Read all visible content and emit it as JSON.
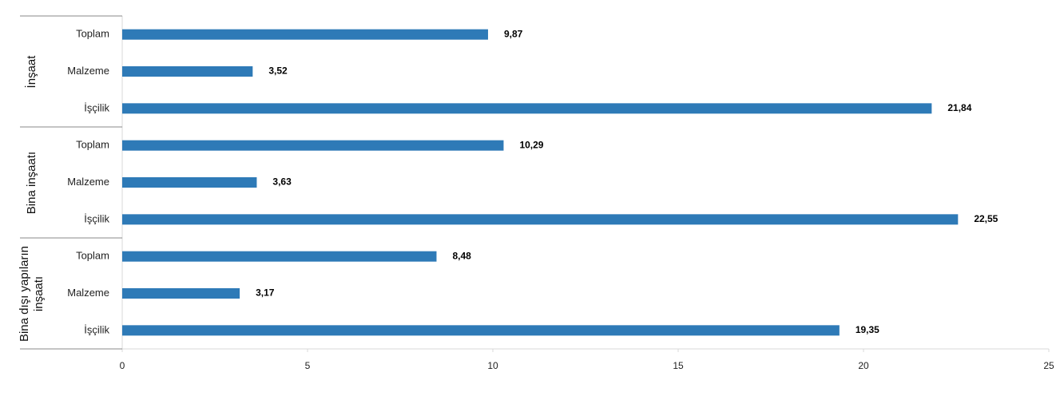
{
  "chart_data": {
    "type": "bar",
    "orientation": "horizontal",
    "color": "#2e7ab7",
    "groups": [
      {
        "name": "İnşaat",
        "categories": [
          "Toplam",
          "Malzeme",
          "İşçilik"
        ],
        "values": [
          9.87,
          3.52,
          21.84
        ],
        "value_labels": [
          "9,87",
          "3,52",
          "21,84"
        ]
      },
      {
        "name": "Bina inşaatı",
        "categories": [
          "Toplam",
          "Malzeme",
          "İşçilik"
        ],
        "values": [
          10.29,
          3.63,
          22.55
        ],
        "value_labels": [
          "10,29",
          "3,63",
          "22,55"
        ]
      },
      {
        "name": "Bina dışı yapıların inşaatı",
        "categories": [
          "Toplam",
          "Malzeme",
          "İşçilik"
        ],
        "values": [
          8.48,
          3.17,
          19.35
        ],
        "value_labels": [
          "8,48",
          "3,17",
          "19,35"
        ]
      }
    ],
    "xlim": [
      0,
      25
    ],
    "xticks": [
      0,
      5,
      10,
      15,
      20,
      25
    ]
  }
}
